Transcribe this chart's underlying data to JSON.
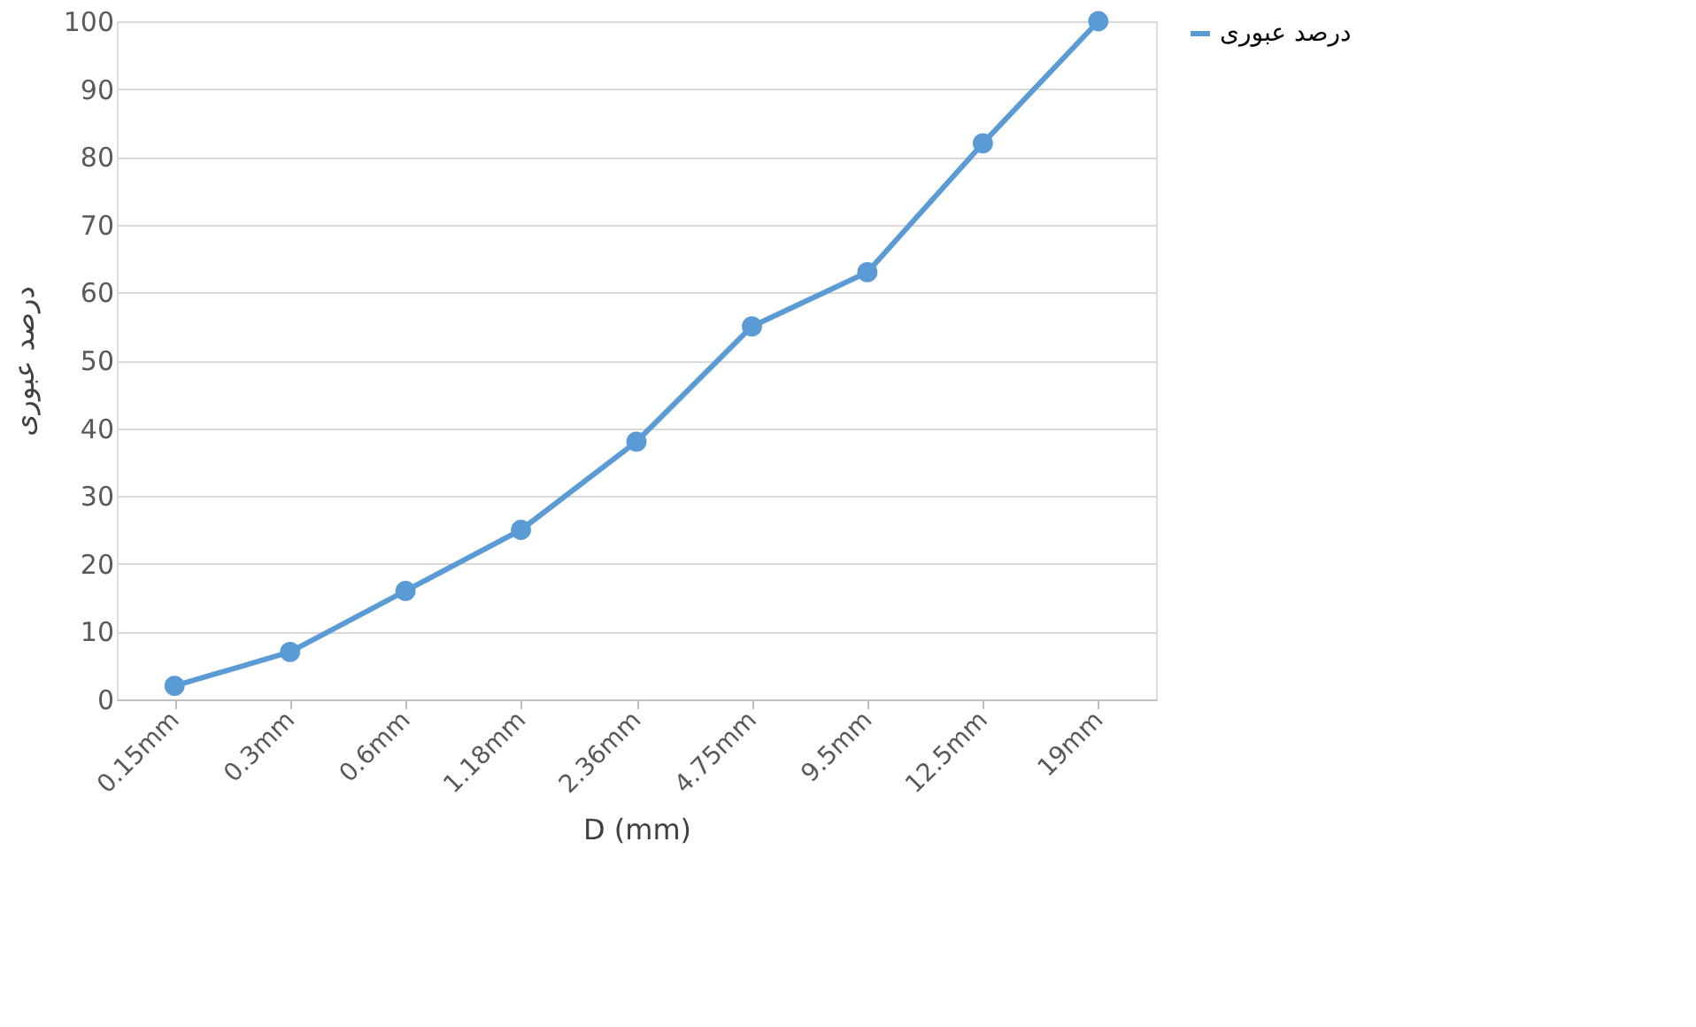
{
  "chart_data": {
    "type": "line",
    "xlabel": "D (mm)",
    "ylabel": "درصد عبوری",
    "categories": [
      "0.15mm",
      "0.3mm",
      "0.6mm",
      "1.18mm",
      "2.36mm",
      "4.75mm",
      "9.5mm",
      "12.5mm",
      "19mm"
    ],
    "series": [
      {
        "name": "درصد عبوری",
        "color": "#5b9bd5",
        "values": [
          2,
          7,
          16,
          25,
          38,
          55,
          63,
          82,
          100
        ]
      }
    ],
    "ylim": [
      0,
      100
    ],
    "yticks": [
      0,
      10,
      20,
      30,
      40,
      50,
      60,
      70,
      80,
      90,
      100
    ],
    "grid": "y",
    "legend": "right",
    "marker": "circle",
    "line_style": "solid"
  }
}
